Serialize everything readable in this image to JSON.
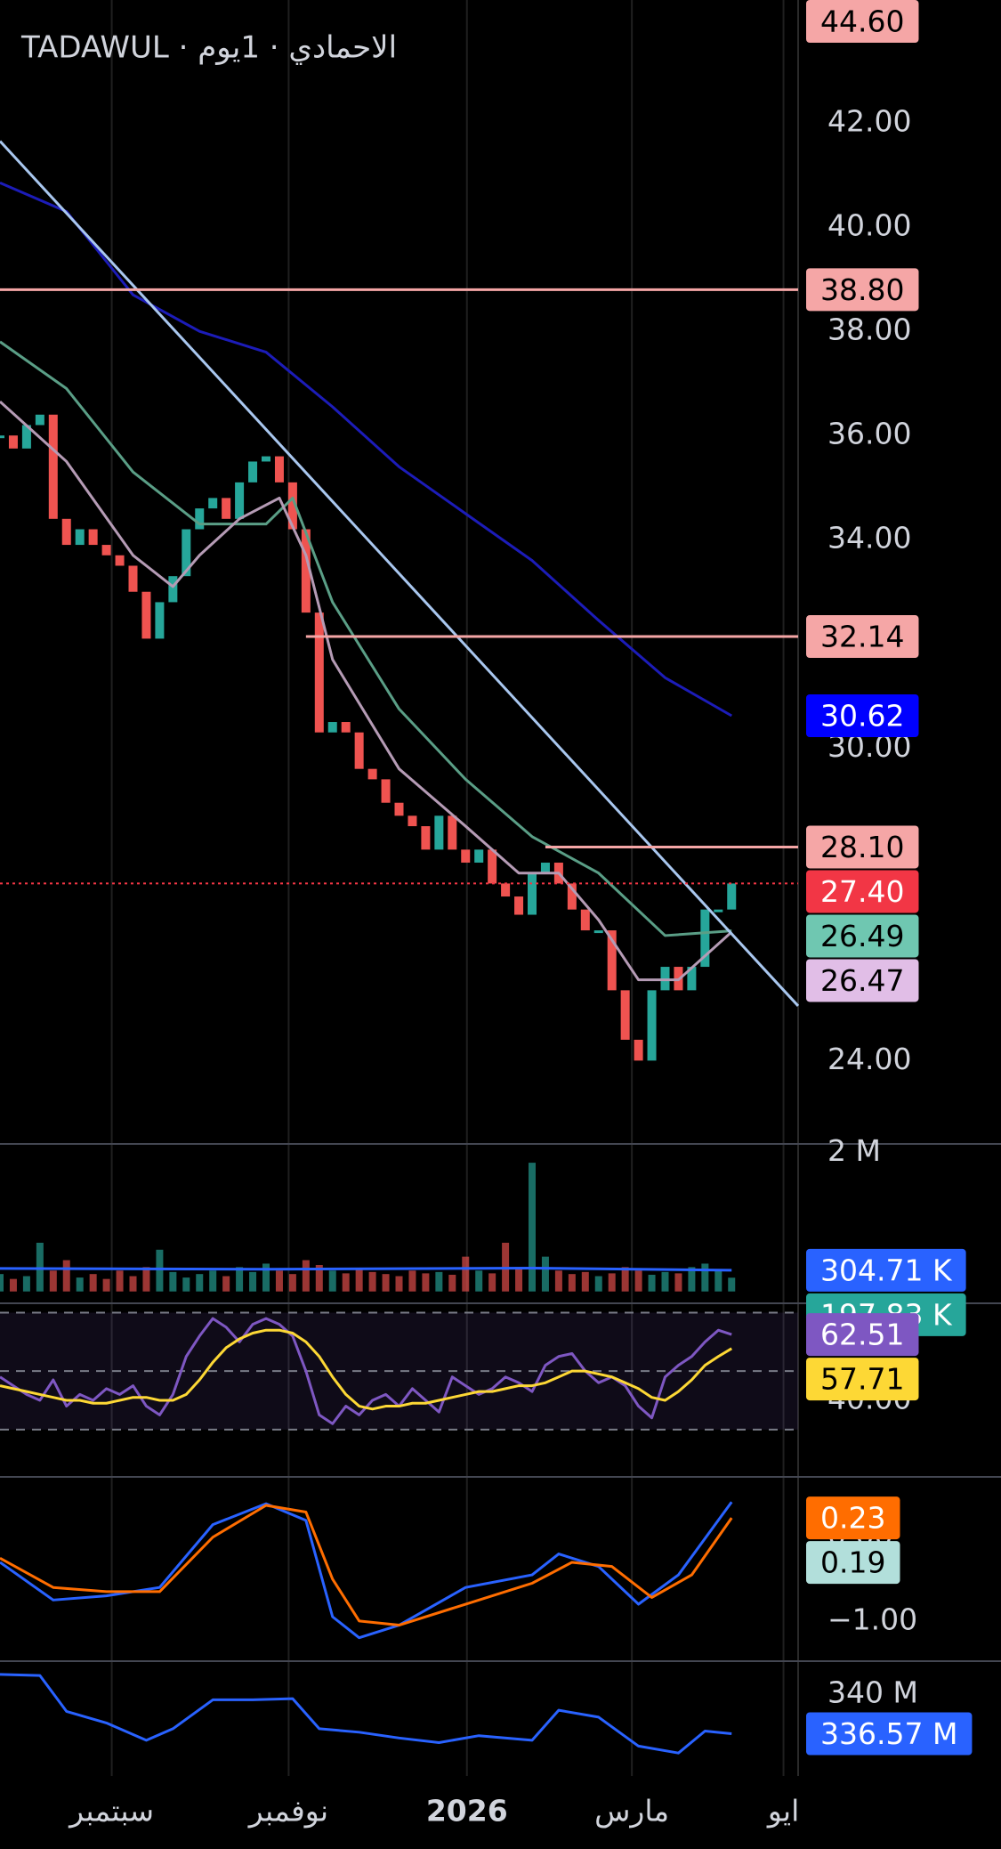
{
  "chart_data": [
    {
      "type": "candlestick",
      "title": "TADAWUL · الاحمادي · 1يوم",
      "xlim": [
        0,
        60
      ],
      "xticks": [
        {
          "value": 8.4,
          "label": "سبتمبر"
        },
        {
          "value": 21.7,
          "label": "نوفمبر"
        },
        {
          "value": 35.1,
          "label": "2026"
        },
        {
          "value": 47.5,
          "label": "مارس"
        },
        {
          "value": 58.9,
          "label": "ايو"
        }
      ],
      "ylim": [
        22.4,
        44.36
      ],
      "yticks": [
        {
          "value": 24,
          "label": "24.00"
        },
        {
          "value": 30,
          "label": "30.00"
        },
        {
          "value": 34,
          "label": "34.00"
        },
        {
          "value": 36,
          "label": "36.00"
        },
        {
          "value": 38,
          "label": "38.00"
        },
        {
          "value": 40,
          "label": "40.00"
        },
        {
          "value": 42,
          "label": "42.00"
        }
      ],
      "up_color": "#26a69a",
      "down_color": "#ef5350",
      "values": [
        36.0,
        35.75,
        36.2,
        36.4,
        34.4,
        33.9,
        34.2,
        33.9,
        33.7,
        33.5,
        33.0,
        32.1,
        32.8,
        33.3,
        34.2,
        34.6,
        34.8,
        34.4,
        35.1,
        35.5,
        35.6,
        35.1,
        34.2,
        32.6,
        30.3,
        30.5,
        30.3,
        29.6,
        29.4,
        28.95,
        28.7,
        28.5,
        28.05,
        28.7,
        28.05,
        27.8,
        28.05,
        27.4,
        27.15,
        26.8,
        27.6,
        27.8,
        27.4,
        26.9,
        26.5,
        26.5,
        25.35,
        24.4,
        24.0,
        25.35,
        25.8,
        25.35,
        25.8,
        26.9,
        26.9,
        27.4
      ],
      "series": [
        {
          "color": "#1c1cb8",
          "x": [
            0,
            5,
            10,
            15,
            20,
            25,
            30,
            35,
            40,
            45,
            50,
            55
          ],
          "values": [
            40.85,
            40.3,
            38.7,
            38.0,
            37.6,
            36.55,
            35.4,
            34.5,
            33.6,
            32.45,
            31.35,
            30.62
          ]
        },
        {
          "color": "#5a9e86",
          "x": [
            0,
            5,
            10,
            15,
            20,
            22,
            25,
            30,
            35,
            40,
            45,
            50,
            55
          ],
          "values": [
            37.8,
            36.9,
            35.3,
            34.3,
            34.3,
            34.8,
            32.8,
            30.75,
            29.4,
            28.3,
            27.6,
            26.4,
            26.49
          ]
        },
        {
          "color": "#b59bb5",
          "x": [
            0,
            5,
            10,
            13,
            15,
            18,
            21,
            23,
            25,
            30,
            35,
            39,
            42,
            45,
            48,
            51,
            55
          ],
          "values": [
            36.65,
            35.5,
            33.7,
            33.1,
            33.7,
            34.4,
            34.8,
            33.7,
            31.7,
            29.6,
            28.5,
            27.6,
            27.6,
            26.7,
            25.55,
            25.55,
            26.47
          ]
        },
        {
          "color": "#a9c7ef",
          "x": [
            0,
            60
          ],
          "values": [
            41.65,
            25.05
          ]
        }
      ],
      "badges": [
        {
          "value": 44.6,
          "label": "44.60",
          "color": "#f5a6a6",
          "text_color": "#000000"
        },
        {
          "value": 38.8,
          "label": "38.80",
          "color": "#f5a6a6",
          "text_color": "#000000",
          "line_from": 0
        },
        {
          "value": 32.14,
          "label": "32.14",
          "color": "#f5a6a6",
          "text_color": "#000000",
          "line_from": 23
        },
        {
          "value": 30.62,
          "label": "30.62",
          "color": "#0000ff",
          "text_color": "#ffffff"
        },
        {
          "value": 28.1,
          "label": "28.10",
          "color": "#f5a6a6",
          "text_color": "#000000",
          "line_from": 41
        },
        {
          "value": 27.4,
          "label": "27.40",
          "color": "#f23645",
          "text_color": "#ffffff",
          "line_from": 0,
          "dotted": true
        },
        {
          "value": 26.49,
          "label": "26.49",
          "color": "#6fc7b1",
          "text_color": "#000000"
        },
        {
          "value": 26.47,
          "label": "26.47",
          "color": "#e1bee7",
          "text_color": "#000000"
        }
      ]
    },
    {
      "type": "bar",
      "ylim": [
        -170000,
        2120000
      ],
      "yticks": [
        {
          "value": 2000000,
          "label": "2 M"
        }
      ],
      "values": [
        250000,
        180000,
        220000,
        700000,
        300000,
        450000,
        200000,
        250000,
        180000,
        300000,
        220000,
        350000,
        600000,
        280000,
        200000,
        250000,
        300000,
        220000,
        350000,
        280000,
        400000,
        300000,
        250000,
        450000,
        380000,
        300000,
        260000,
        320000,
        280000,
        250000,
        220000,
        300000,
        260000,
        280000,
        240000,
        500000,
        300000,
        260000,
        700000,
        350000,
        1850000,
        500000,
        300000,
        250000,
        280000,
        220000,
        260000,
        350000,
        300000,
        240000,
        280000,
        260000,
        350000,
        400000,
        320000,
        197830
      ],
      "series": [
        {
          "color": "#2962ff",
          "x": [
            0,
            20,
            40,
            55
          ],
          "values": [
            330000,
            320000,
            335000,
            304710
          ]
        }
      ],
      "badges": [
        {
          "value": 304710,
          "label": "304.71 K",
          "color": "#2962ff",
          "text_color": "#ffffff"
        },
        {
          "value": 197830,
          "label": "197.83 K",
          "color": "#26a69a",
          "text_color": "#ffffff"
        }
      ]
    },
    {
      "type": "line",
      "ylim": [
        13.8,
        73.2
      ],
      "yticks": [
        {
          "value": 40,
          "label": "40.00"
        }
      ],
      "dashed_levels": [
        30,
        50,
        70
      ],
      "series": [
        {
          "color": "#7e57c2",
          "values": [
            48,
            45,
            42,
            40,
            47,
            38,
            42,
            40,
            44,
            42,
            45,
            38,
            35,
            42,
            55,
            62,
            68,
            65,
            60,
            66,
            68,
            66,
            62,
            50,
            35,
            32,
            38,
            35,
            40,
            42,
            38,
            44,
            40,
            36,
            48,
            45,
            42,
            44,
            48,
            46,
            43,
            52,
            55,
            56,
            50,
            46,
            48,
            45,
            38,
            34,
            48,
            52,
            55,
            60,
            64,
            62.51
          ]
        },
        {
          "color": "#fdd835",
          "values": [
            45,
            44,
            43,
            42,
            41,
            40,
            40,
            39,
            39,
            40,
            41,
            41,
            40,
            40,
            42,
            47,
            53,
            58,
            61,
            63,
            64,
            64,
            63,
            60,
            55,
            48,
            42,
            38,
            37,
            38,
            38,
            39,
            39,
            40,
            41,
            42,
            43,
            43,
            44,
            45,
            45,
            46,
            48,
            50,
            50,
            49,
            48,
            46,
            44,
            41,
            40,
            43,
            47,
            52,
            55,
            57.71
          ]
        }
      ],
      "badges": [
        {
          "value": 62.51,
          "label": "62.51",
          "color": "#7e57c2",
          "text_color": "#ffffff"
        },
        {
          "value": 57.71,
          "label": "57.71",
          "color": "#fdd835",
          "text_color": "#000000"
        }
      ]
    },
    {
      "type": "line",
      "ylim": [
        -1.48,
        0.72
      ],
      "yticks": [
        {
          "value": 0,
          "label": "0.00"
        },
        {
          "value": -1,
          "label": "−1.00"
        }
      ],
      "series": [
        {
          "color": "#2962ff",
          "x": [
            0,
            4,
            8,
            12,
            16,
            20,
            23,
            25,
            27,
            30,
            35,
            40,
            42,
            45,
            48,
            51,
            55
          ],
          "values": [
            -0.3,
            -0.75,
            -0.7,
            -0.6,
            0.15,
            0.4,
            0.2,
            -0.95,
            -1.2,
            -1.05,
            -0.6,
            -0.45,
            -0.2,
            -0.35,
            -0.8,
            -0.45,
            0.42
          ]
        },
        {
          "color": "#ff6d00",
          "x": [
            0,
            4,
            8,
            12,
            16,
            20,
            23,
            25,
            27,
            30,
            35,
            40,
            43,
            46,
            49,
            52,
            55
          ],
          "values": [
            -0.25,
            -0.6,
            -0.65,
            -0.65,
            0,
            0.38,
            0.3,
            -0.5,
            -1.0,
            -1.05,
            -0.8,
            -0.55,
            -0.3,
            -0.35,
            -0.72,
            -0.45,
            0.23
          ]
        }
      ],
      "badges": [
        {
          "value": 0.23,
          "label": "0.23",
          "color": "#ff6d00",
          "text_color": "#ffffff"
        },
        {
          "value": 0.19,
          "label": "0.19",
          "color": "#b2dfdb",
          "text_color": "#000000"
        }
      ]
    },
    {
      "type": "line",
      "ylim": [
        333.3,
        342.84
      ],
      "yticks": [
        {
          "value": 340,
          "label": "340 M"
        }
      ],
      "series": [
        {
          "color": "#2962ff",
          "x": [
            0,
            3,
            5,
            8,
            11,
            13,
            16,
            19,
            22,
            24,
            27,
            30,
            33,
            36,
            40,
            42,
            45,
            48,
            51,
            53,
            55
          ],
          "values": [
            341.7,
            341.6,
            338.5,
            337.5,
            336,
            337,
            339.5,
            339.5,
            339.6,
            337,
            336.7,
            336.2,
            335.8,
            336.4,
            336,
            338.6,
            338,
            335.5,
            334.9,
            336.8,
            336.57
          ]
        }
      ],
      "badges": [
        {
          "value": 336.57,
          "label": "336.57 M",
          "color": "#2962ff",
          "text_color": "#ffffff"
        }
      ]
    }
  ]
}
